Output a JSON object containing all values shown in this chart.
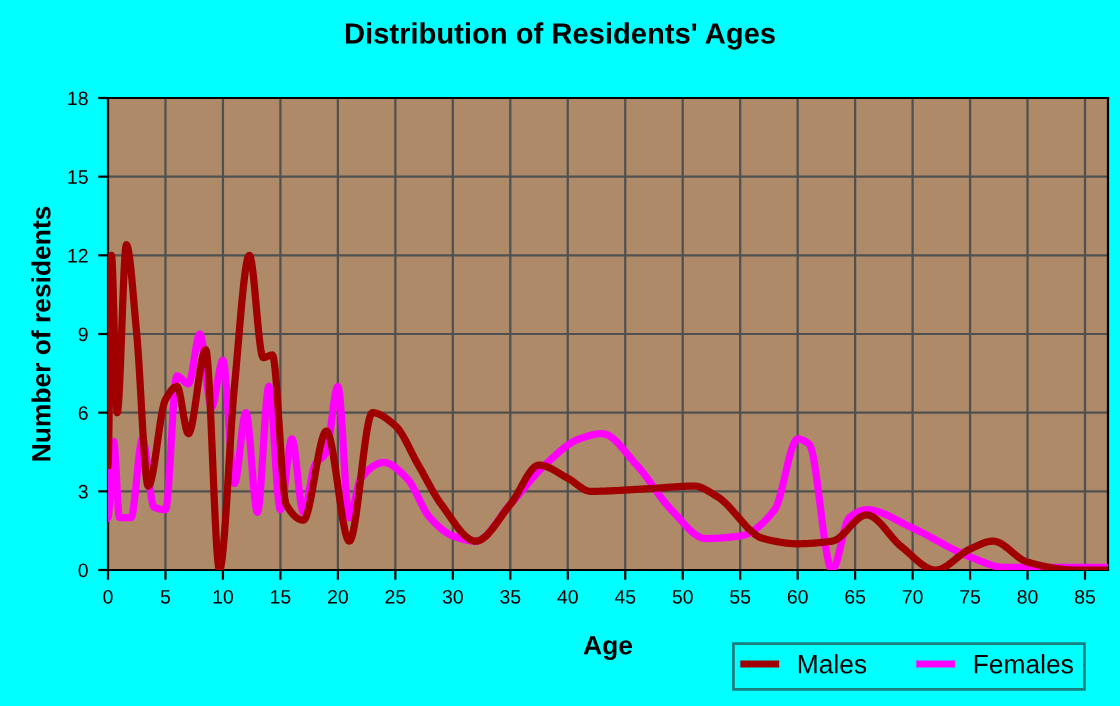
{
  "chart_data": {
    "type": "line",
    "title": "Distribution of Residents' Ages",
    "xlabel": "Age",
    "ylabel": "Number of residents",
    "xlim": [
      0,
      87
    ],
    "xticks": [
      0,
      5,
      10,
      15,
      20,
      25,
      30,
      35,
      40,
      45,
      50,
      55,
      60,
      65,
      70,
      75,
      80,
      85
    ],
    "ylim": [
      0,
      18
    ],
    "yticks": [
      0,
      3,
      6,
      9,
      12,
      15,
      18
    ],
    "grid": true,
    "legend": "bottom right",
    "marker": "none",
    "line_style": "solid",
    "series": [
      {
        "name": "Males",
        "color": "#a00000",
        "x": [
          0,
          0.3,
          0.8,
          1.6,
          2.5,
          3.5,
          5,
          6,
          7,
          8.5,
          9.7,
          11,
          12.3,
          13.5,
          14.3,
          15.5,
          17,
          19,
          21,
          23,
          25,
          27,
          29,
          32,
          35,
          37.5,
          40,
          42,
          47,
          51,
          53,
          57,
          60,
          63,
          66,
          69,
          72,
          75,
          77,
          80,
          84,
          87
        ],
        "values": [
          4,
          12,
          6,
          12.4,
          9,
          3.2,
          6.5,
          7,
          5.2,
          8.4,
          0,
          7,
          12,
          8.1,
          8.2,
          2.5,
          1.9,
          5.3,
          1.1,
          6,
          5.5,
          4,
          2.5,
          1.1,
          2.5,
          4,
          3.5,
          3,
          3.1,
          3.2,
          2.8,
          1.2,
          1,
          1.1,
          2.1,
          0.9,
          0,
          0.8,
          1.1,
          0.3,
          0,
          0
        ]
      },
      {
        "name": "Females",
        "color": "#ff00ff",
        "x": [
          0,
          0.5,
          1,
          2,
          3,
          4,
          5,
          6,
          7,
          8,
          9,
          10,
          11,
          12,
          13,
          14,
          15,
          16,
          17,
          18,
          19,
          20,
          21,
          22,
          24,
          26,
          28,
          30,
          32,
          35,
          38,
          41,
          43,
          46,
          49,
          52,
          55,
          58,
          60,
          61,
          63,
          64.5,
          66,
          70,
          75,
          78,
          82,
          87
        ],
        "values": [
          2,
          4.9,
          2,
          2,
          5,
          2.4,
          2.3,
          7.4,
          7.1,
          9,
          6.2,
          8,
          3.3,
          6,
          2.2,
          7,
          2.3,
          5,
          2.2,
          4,
          4.5,
          7,
          2,
          3.5,
          4.1,
          3.5,
          2,
          1.3,
          1.1,
          2.5,
          4,
          5,
          5.2,
          4,
          2.3,
          1.2,
          1.3,
          2.3,
          5,
          4.8,
          0,
          2,
          2.3,
          1.6,
          0.5,
          0.1,
          0.1,
          0.1
        ]
      }
    ]
  }
}
